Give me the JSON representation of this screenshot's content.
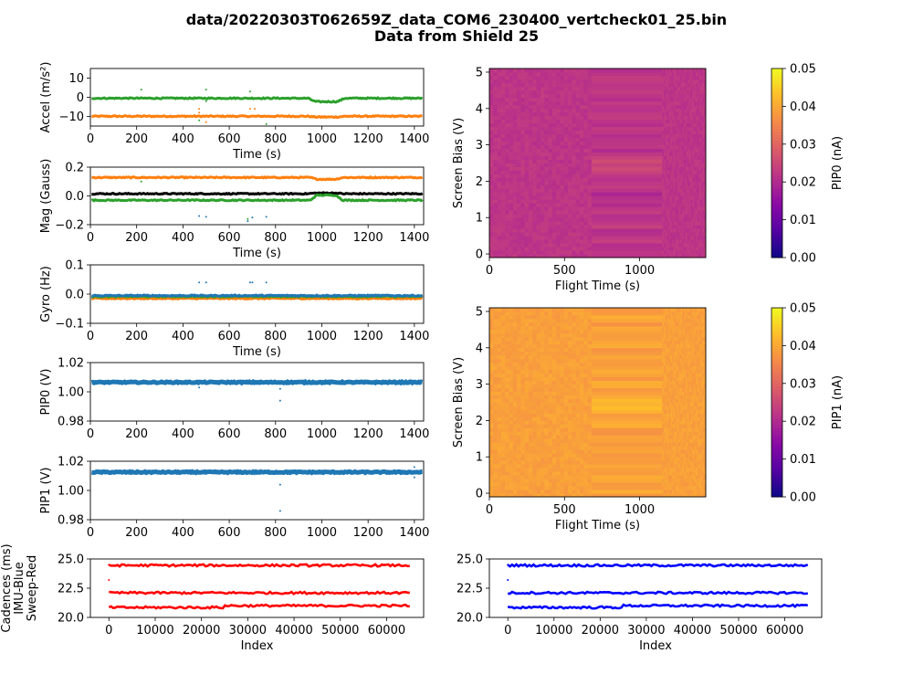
{
  "figure": {
    "title_line1": "data/20220303T062659Z_data_COM6_230400_vertcheck01_25.bin",
    "title_line2": "Data from Shield 25"
  },
  "colors": {
    "tab_blue": "#1f77b4",
    "tab_orange": "#ff7f0e",
    "tab_green": "#2ca02c",
    "black": "#000000",
    "red": "#ff0000",
    "blue": "#0000ff"
  },
  "chart_data": [
    {
      "id": "accel",
      "type": "scatter",
      "xlabel": "Time (s)",
      "ylabel": "Accel (m/s²)",
      "xlim": [
        0,
        1440
      ],
      "ylim": [
        -15,
        15
      ],
      "xticks": [
        0,
        200,
        400,
        600,
        800,
        1000,
        1200,
        1400
      ],
      "yticks": [
        10,
        0,
        -10
      ],
      "ytick_labels": [
        "10",
        "0",
        "−10"
      ],
      "series": [
        {
          "color": "tab_orange",
          "baseline": -9.9,
          "dip": {
            "x0": 940,
            "x1": 1100,
            "depth": -0.4
          },
          "outliers": [
            [
              470,
              -6
            ],
            [
              470,
              -8
            ],
            [
              500,
              -13
            ],
            [
              690,
              -6
            ],
            [
              710,
              -6
            ]
          ]
        },
        {
          "color": "tab_green",
          "baseline": -0.5,
          "dip": {
            "x0": 940,
            "x1": 1100,
            "depth": -1.8
          },
          "outliers": [
            [
              220,
              4
            ],
            [
              470,
              -12
            ],
            [
              500,
              4
            ],
            [
              500,
              -2
            ],
            [
              690,
              3
            ],
            [
              760,
              -14
            ]
          ]
        }
      ]
    },
    {
      "id": "mag",
      "type": "scatter",
      "xlabel": "Time (s)",
      "ylabel": "Mag (Gauss)",
      "xlim": [
        0,
        1440
      ],
      "ylim": [
        -0.2,
        0.2
      ],
      "xticks": [
        0,
        200,
        400,
        600,
        800,
        1000,
        1200,
        1400
      ],
      "yticks": [
        0.2,
        0.0,
        -0.2
      ],
      "ytick_labels": [
        "0.2",
        "0.0",
        "−0.2"
      ],
      "series": [
        {
          "color": "tab_orange",
          "baseline": 0.128,
          "dip": {
            "x0": 950,
            "x1": 1090,
            "depth": -0.012
          },
          "outliers": []
        },
        {
          "color": "black",
          "baseline": 0.015,
          "dip": {
            "x0": 940,
            "x1": 1090,
            "depth": 0.005
          },
          "outliers": []
        },
        {
          "color": "tab_green",
          "baseline": -0.03,
          "dip": {
            "x0": 950,
            "x1": 1090,
            "depth": 0.035
          },
          "outliers": [
            [
              220,
              0.1
            ],
            [
              680,
              -0.16
            ]
          ]
        },
        {
          "color": "tab_blue",
          "baseline": null,
          "dip": null,
          "outliers": [
            [
              470,
              -0.14
            ],
            [
              500,
              -0.145
            ],
            [
              680,
              -0.175
            ],
            [
              700,
              -0.15
            ],
            [
              760,
              -0.145
            ]
          ]
        }
      ]
    },
    {
      "id": "gyro",
      "type": "scatter",
      "xlabel": "Time (s)",
      "ylabel": "Gyro (Hz)",
      "xlim": [
        0,
        1440
      ],
      "ylim": [
        -0.1,
        0.1
      ],
      "xticks": [
        0,
        200,
        400,
        600,
        800,
        1000,
        1200,
        1400
      ],
      "yticks": [
        0.1,
        0.0,
        -0.1
      ],
      "ytick_labels": [
        "0.1",
        "0.0",
        "−0.1"
      ],
      "series": [
        {
          "color": "tab_orange",
          "baseline": -0.015,
          "dip": null,
          "outliers": []
        },
        {
          "color": "tab_green",
          "baseline": -0.008,
          "dip": null,
          "outliers": []
        },
        {
          "color": "tab_blue",
          "baseline": -0.005,
          "dip": null,
          "outliers": [
            [
              470,
              0.04
            ],
            [
              500,
              0.04
            ],
            [
              690,
              0.04
            ],
            [
              700,
              0.04
            ],
            [
              760,
              0.04
            ]
          ]
        }
      ]
    },
    {
      "id": "pip0_v",
      "type": "scatter",
      "xlabel": "",
      "ylabel": "PIP0 (V)",
      "xlim": [
        0,
        1440
      ],
      "ylim": [
        0.98,
        1.02
      ],
      "xticks": [
        0,
        200,
        400,
        600,
        800,
        1000,
        1200,
        1400
      ],
      "yticks": [
        1.02,
        1.0,
        0.98
      ],
      "ytick_labels": [
        "1.02",
        "1.00",
        "0.98"
      ],
      "series": [
        {
          "color": "tab_blue",
          "baseline": 1.0065,
          "dip": null,
          "outliers": [
            [
              470,
              1.003
            ],
            [
              820,
              1.002
            ],
            [
              820,
              0.994
            ]
          ]
        }
      ]
    },
    {
      "id": "pip1_v",
      "type": "scatter",
      "xlabel": "",
      "ylabel": "PIP1 (V)",
      "xlim": [
        0,
        1440
      ],
      "ylim": [
        0.98,
        1.02
      ],
      "xticks": [
        0,
        200,
        400,
        600,
        800,
        1000,
        1200,
        1400
      ],
      "yticks": [
        1.02,
        1.0,
        0.98
      ],
      "ytick_labels": [
        "1.02",
        "1.00",
        "0.98"
      ],
      "series": [
        {
          "color": "tab_blue",
          "baseline": 1.0125,
          "dip": null,
          "outliers": [
            [
              820,
              1.004
            ],
            [
              820,
              0.986
            ],
            [
              1400,
              1.016
            ],
            [
              1400,
              1.009
            ]
          ]
        }
      ]
    },
    {
      "id": "cadence_left",
      "type": "scatter",
      "xlabel": "Index",
      "ylabel": "Cadences (ms)\nIMU-Blue\nSweep-Red",
      "xlim": [
        -4000,
        68000
      ],
      "ylim": [
        20,
        25
      ],
      "xticks": [
        0,
        10000,
        20000,
        30000,
        40000,
        50000,
        60000
      ],
      "yticks": [
        25.0,
        22.5,
        20.0
      ],
      "ytick_labels": [
        "25.0",
        "22.5",
        "20.0"
      ],
      "series": [
        {
          "color": "red",
          "bands": [
            24.45,
            22.1,
            21.0
          ],
          "outliers": [
            [
              0,
              23.2
            ],
            [
              0,
              24.5
            ]
          ]
        }
      ]
    },
    {
      "id": "cadence_right",
      "type": "scatter",
      "xlabel": "Index",
      "ylabel": "",
      "xlim": [
        -4000,
        68000
      ],
      "ylim": [
        20,
        25
      ],
      "xticks": [
        0,
        10000,
        20000,
        30000,
        40000,
        50000,
        60000
      ],
      "yticks": [
        25.0,
        22.5,
        20.0
      ],
      "ytick_labels": [
        "25.0",
        "22.5",
        "20.0"
      ],
      "series": [
        {
          "color": "blue",
          "bands": [
            24.45,
            22.1,
            21.0
          ],
          "outliers": [
            [
              0,
              23.2
            ],
            [
              0,
              24.5
            ]
          ]
        }
      ]
    },
    {
      "id": "pip0_heatmap",
      "type": "heatmap",
      "xlabel": "Flight Time (s)",
      "ylabel": "Screen Bias (V)",
      "xlim": [
        0,
        1440
      ],
      "ylim": [
        -0.1,
        5.1
      ],
      "xticks": [
        0,
        500,
        1000
      ],
      "yticks": [
        5,
        4,
        3,
        2,
        1,
        0
      ],
      "colormap": "plasma",
      "clim": [
        0.0,
        0.05
      ],
      "colorbar_label": "PIP0 (nA)",
      "colorbar_ticks": [
        "0.05",
        "0.04",
        "0.03",
        "0.02",
        "0.01",
        "0.00"
      ],
      "base_value": 0.022,
      "segments": [
        0,
        680,
        1150,
        1440
      ]
    },
    {
      "id": "pip1_heatmap",
      "type": "heatmap",
      "xlabel": "Flight Time (s)",
      "ylabel": "Screen Bias (V)",
      "xlim": [
        0,
        1440
      ],
      "ylim": [
        -0.1,
        5.1
      ],
      "xticks": [
        0,
        500,
        1000
      ],
      "yticks": [
        5,
        4,
        3,
        2,
        1,
        0
      ],
      "colormap": "plasma",
      "clim": [
        0.0,
        0.05
      ],
      "colorbar_label": "PIP1 (nA)",
      "colorbar_ticks": [
        "0.05",
        "0.04",
        "0.03",
        "0.02",
        "0.01",
        "0.00"
      ],
      "base_value": 0.039,
      "segments": [
        0,
        680,
        1150,
        1440
      ]
    }
  ]
}
